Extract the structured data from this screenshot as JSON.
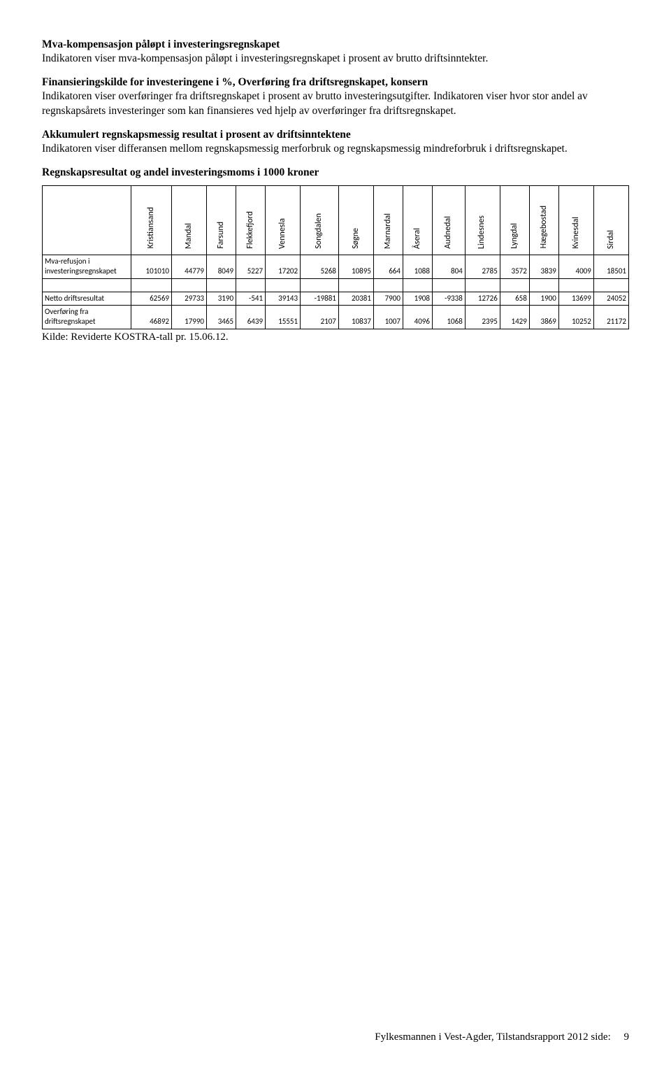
{
  "sections": {
    "s1": {
      "heading": "Mva-kompensasjon påløpt i investeringsregnskapet",
      "body": "Indikatoren viser mva-kompensasjon påløpt i investeringsregnskapet i prosent av brutto driftsinntekter."
    },
    "s2": {
      "heading": "Finansieringskilde for investeringene i %, Overføring fra driftsregnskapet, konsern",
      "body": "Indikatoren viser overføringer fra driftsregnskapet i prosent av brutto investeringsutgifter. Indikatoren viser hvor stor andel av regnskapsårets investeringer som kan finansieres ved hjelp av overføringer fra driftsregnskapet."
    },
    "s3": {
      "heading": "Akkumulert regnskapsmessig resultat i prosent av driftsinntektene",
      "body": "Indikatoren viser differansen mellom regnskapsmessig merforbruk og regnskapsmessig mindreforbruk i driftsregnskapet."
    },
    "tableTitle": "Regnskapsresultat og andel investeringsmoms i 1000 kroner"
  },
  "table": {
    "columns": [
      "Kristiansand",
      "Mandal",
      "Farsund",
      "Flekkefjord",
      "Vennesla",
      "Songdalen",
      "Søgne",
      "Marnardal",
      "Åseral",
      "Audnedal",
      "Lindesnes",
      "Lyngdal",
      "Hægebostad",
      "Kvinesdal",
      "Sirdal"
    ],
    "rows": [
      {
        "label": "Mva-refusjon i investeringsregnskapet",
        "values": [
          "101010",
          "44779",
          "8049",
          "5227",
          "17202",
          "5268",
          "10895",
          "664",
          "1088",
          "804",
          "2785",
          "3572",
          "3839",
          "4009",
          "18501"
        ]
      },
      {
        "label": "Netto driftsresultat",
        "values": [
          "62569",
          "29733",
          "3190",
          "-541",
          "39143",
          "-19881",
          "20381",
          "7900",
          "1908",
          "-9338",
          "12726",
          "658",
          "1900",
          "13699",
          "24052"
        ]
      },
      {
        "label": "Overføring fra driftsregnskapet",
        "values": [
          "46892",
          "17990",
          "3465",
          "6439",
          "15551",
          "2107",
          "10837",
          "1007",
          "4096",
          "1068",
          "2395",
          "1429",
          "3869",
          "10252",
          "21172"
        ]
      }
    ]
  },
  "source": "Kilde: Reviderte KOSTRA-tall pr. 15.06.12.",
  "footer": {
    "text": "Fylkesmannen i Vest-Agder, Tilstandsrapport 2012 side:",
    "page": "9"
  }
}
